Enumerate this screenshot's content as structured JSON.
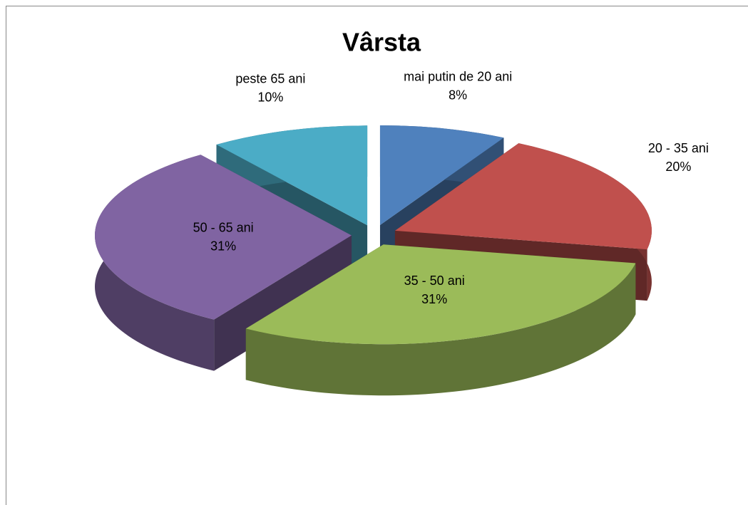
{
  "chart_data": {
    "type": "pie3d",
    "title": "Vârsta",
    "categories": [
      "mai putin de 20 ani",
      "20 - 35 ani",
      "35 - 50 ani",
      "50 - 65 ani",
      "peste 65 ani"
    ],
    "values": [
      8,
      20,
      31,
      31,
      10
    ],
    "value_labels": [
      "8%",
      "20%",
      "31%",
      "31%",
      "10%"
    ],
    "colors": [
      "#4f81bd",
      "#c0504d",
      "#9bbb59",
      "#8064a2",
      "#4bacc6"
    ]
  }
}
